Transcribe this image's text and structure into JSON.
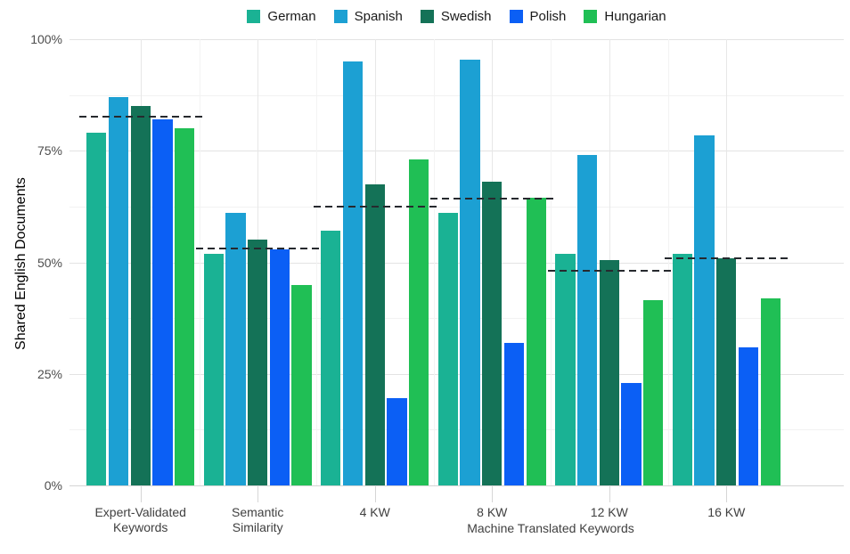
{
  "chart_data": {
    "type": "bar",
    "title": "",
    "ylabel": "Shared English Documents",
    "xlabel": "",
    "x_sub_label": "Machine Translated Keywords",
    "ylim": [
      0,
      100
    ],
    "y_tick_values": [
      0,
      25,
      50,
      75,
      100
    ],
    "y_tick_labels": [
      "0%",
      "25%",
      "50%",
      "75%",
      "100%"
    ],
    "y_minor_gridline_values": [
      12.5,
      37.5,
      62.5,
      87.5
    ],
    "grid": true,
    "legend_position": "top-center",
    "categories": [
      "Expert-Validated Keywords",
      "Semantic Similarity",
      "4 KW",
      "8 KW",
      "12 KW",
      "16 KW"
    ],
    "category_label_lines": [
      "Expert-Validated\nKeywords",
      "Semantic\nSimilarity",
      "4 KW",
      "8 KW",
      "12 KW",
      "16 KW"
    ],
    "series": [
      {
        "name": "German",
        "color": "#1ab294",
        "values": [
          79,
          52,
          57,
          61,
          52,
          52
        ]
      },
      {
        "name": "Spanish",
        "color": "#1ca0d3",
        "values": [
          87,
          61,
          95,
          95.5,
          74,
          78.5
        ]
      },
      {
        "name": "Swedish",
        "color": "#147257",
        "values": [
          85,
          55,
          67.5,
          68,
          50.5,
          51
        ]
      },
      {
        "name": "Polish",
        "color": "#0b5ff5",
        "values": [
          82,
          53,
          19.5,
          32,
          23,
          31
        ]
      },
      {
        "name": "Hungarian",
        "color": "#20bf55",
        "values": [
          80,
          45,
          73,
          64.5,
          41.5,
          42
        ]
      }
    ],
    "group_mean_lines": {
      "style": "dashed",
      "color": "#26292e",
      "values": [
        82.7,
        53.2,
        62.5,
        64.3,
        48.2,
        51
      ]
    }
  }
}
